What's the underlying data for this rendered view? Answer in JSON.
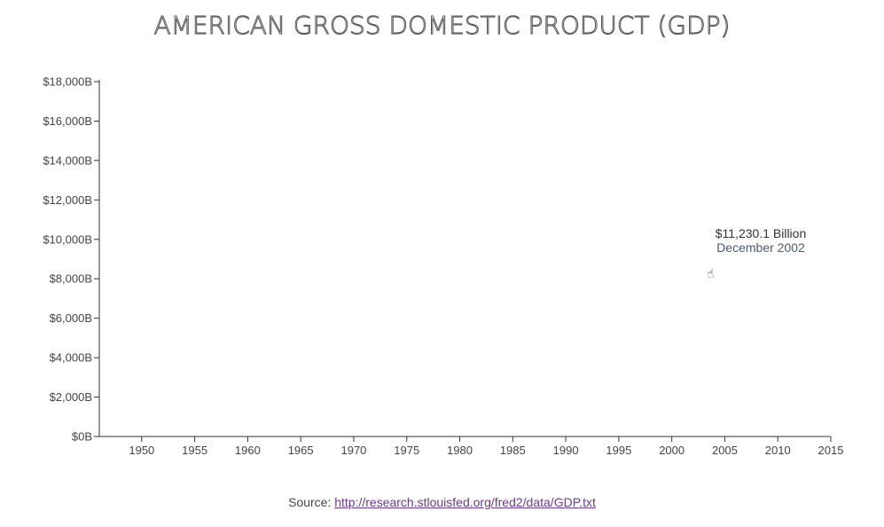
{
  "chart_data": {
    "type": "line",
    "title": "AMERICAN GROSS DOMESTIC PRODUCT (GDP)",
    "ylim": [
      0,
      18000
    ],
    "xlim": [
      1946,
      2015
    ],
    "y_ticks": [
      "$0B",
      "$2,000B",
      "$4,000B",
      "$6,000B",
      "$8,000B",
      "$10,000B",
      "$12,000B",
      "$14,000B",
      "$16,000B",
      "$18,000B"
    ],
    "y_tick_values": [
      0,
      2000,
      4000,
      6000,
      8000,
      10000,
      12000,
      14000,
      16000,
      18000
    ],
    "x_ticks": [
      "1950",
      "1955",
      "1960",
      "1965",
      "1970",
      "1975",
      "1980",
      "1985",
      "1990",
      "1995",
      "2000",
      "2005",
      "2010",
      "2015"
    ],
    "x_tick_values": [
      1950,
      1955,
      1960,
      1965,
      1970,
      1975,
      1980,
      1985,
      1990,
      1995,
      2000,
      2005,
      2010,
      2015
    ],
    "series": [],
    "grid": false,
    "tooltip": {
      "value": "$11,230.1 Billion",
      "date": "December 2002"
    }
  },
  "source": {
    "prefix": "Source: ",
    "url": "http://research.stlouisfed.org/fred2/data/GDP.txt"
  }
}
